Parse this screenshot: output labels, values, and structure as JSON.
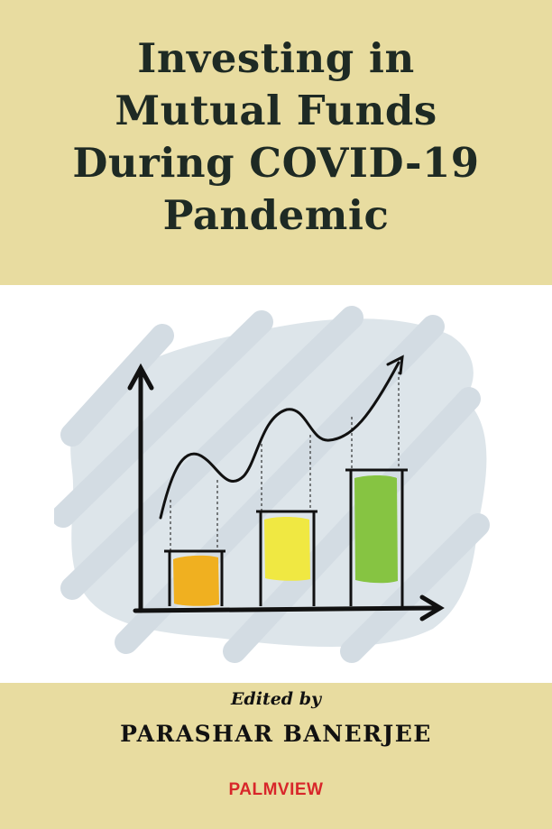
{
  "cover": {
    "title_lines": [
      "Investing in",
      "Mutual Funds",
      "During COVID-19",
      "Pandemic"
    ],
    "edited_by": "Edited by",
    "author": "PARASHAR BANERJEE",
    "publisher": "PALMVIEW"
  },
  "colors": {
    "band": "#e8dca0",
    "title": "#1e2a24",
    "publisher": "#d8262a",
    "bar_orange": "#f0b020",
    "bar_yellow": "#f0e842",
    "bar_green": "#86c442",
    "backdrop": "#dde5ea"
  },
  "illustration": {
    "description_icon": "rising-chart-icon"
  }
}
